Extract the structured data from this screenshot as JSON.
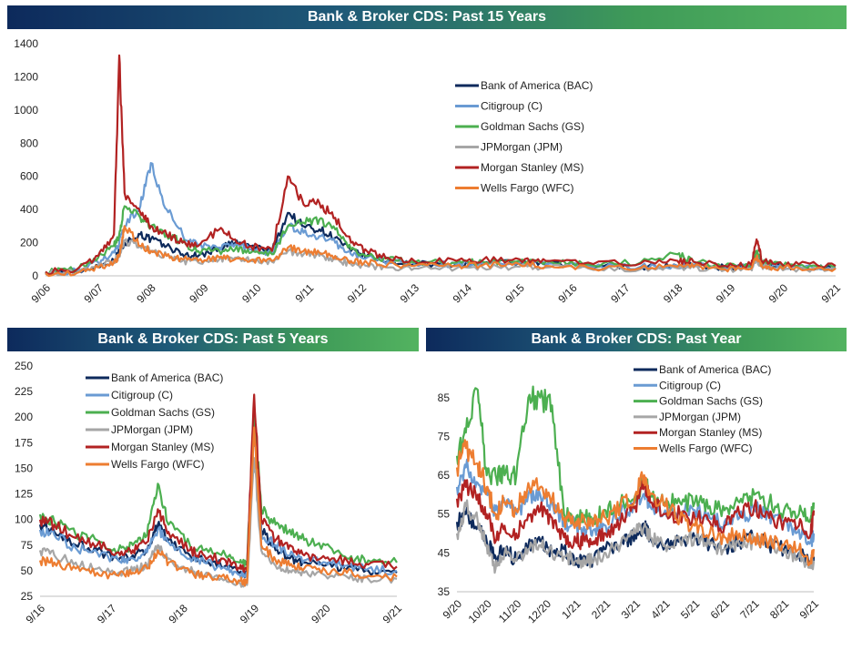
{
  "colors": {
    "BAC": "#0d2a5c",
    "C": "#6a9bd3",
    "GS": "#4caf50",
    "JPM": "#a6a6a6",
    "MS": "#b22222",
    "WFC": "#ed7d31"
  },
  "chart_data": [
    {
      "type": "line",
      "title": "Bank & Broker CDS: Past 15 Years",
      "x_tick_labels": [
        "9/06",
        "9/07",
        "9/08",
        "9/09",
        "9/10",
        "9/11",
        "9/12",
        "9/13",
        "9/14",
        "9/15",
        "9/16",
        "9/17",
        "9/18",
        "9/19",
        "9/20",
        "9/21"
      ],
      "x": [
        2006.7,
        2007.3,
        2007.7,
        2008.0,
        2008.1,
        2008.2,
        2008.5,
        2008.7,
        2009.0,
        2009.3,
        2009.6,
        2010.0,
        2010.3,
        2010.6,
        2011.0,
        2011.3,
        2011.6,
        2011.9,
        2012.2,
        2012.5,
        2012.8,
        2013.2,
        2013.7,
        2014.5,
        2015.0,
        2015.7,
        2016.2,
        2017.0,
        2018.0,
        2018.7,
        2019.0,
        2019.6,
        2020.1,
        2020.2,
        2020.3,
        2020.5,
        2021.0,
        2021.7
      ],
      "yticks": [
        0,
        200,
        400,
        600,
        800,
        1000,
        1200,
        1400
      ],
      "ylim": [
        0,
        1400
      ],
      "legend": "top-center",
      "series": [
        {
          "key": "BAC",
          "name": "Bank of America (BAC)",
          "values": [
            20,
            25,
            60,
            90,
            150,
            200,
            250,
            220,
            180,
            130,
            120,
            170,
            200,
            180,
            150,
            380,
            300,
            280,
            230,
            150,
            120,
            90,
            70,
            70,
            75,
            80,
            70,
            60,
            55,
            60,
            65,
            50,
            55,
            120,
            70,
            60,
            55,
            50
          ]
        },
        {
          "key": "C",
          "name": "Citigroup (C)",
          "values": [
            18,
            30,
            80,
            140,
            200,
            300,
            420,
            680,
            400,
            250,
            180,
            170,
            190,
            160,
            140,
            300,
            260,
            240,
            200,
            130,
            110,
            90,
            70,
            70,
            75,
            80,
            70,
            60,
            55,
            60,
            65,
            50,
            55,
            110,
            70,
            60,
            55,
            50
          ]
        },
        {
          "key": "GS",
          "name": "Goldman Sachs (GS)",
          "values": [
            25,
            40,
            110,
            180,
            250,
            420,
            350,
            300,
            250,
            200,
            150,
            150,
            160,
            140,
            130,
            300,
            320,
            340,
            280,
            160,
            120,
            100,
            80,
            80,
            85,
            90,
            85,
            70,
            80,
            130,
            85,
            60,
            65,
            140,
            90,
            75,
            65,
            58
          ]
        },
        {
          "key": "JPM",
          "name": "JPMorgan (JPM)",
          "values": [
            15,
            20,
            60,
            90,
            120,
            210,
            180,
            150,
            120,
            90,
            80,
            100,
            110,
            90,
            85,
            150,
            130,
            120,
            100,
            70,
            60,
            50,
            45,
            45,
            50,
            55,
            50,
            45,
            40,
            45,
            50,
            35,
            38,
            100,
            55,
            45,
            42,
            40
          ]
        },
        {
          "key": "MS",
          "name": "Morgan Stanley (MS)",
          "values": [
            25,
            40,
            120,
            250,
            1330,
            500,
            380,
            300,
            250,
            200,
            180,
            280,
            220,
            180,
            150,
            600,
            430,
            440,
            350,
            200,
            150,
            110,
            90,
            90,
            95,
            100,
            90,
            80,
            75,
            90,
            85,
            60,
            65,
            220,
            90,
            75,
            70,
            60
          ]
        },
        {
          "key": "WFC",
          "name": "Wells Fargo (WFC)",
          "values": [
            15,
            18,
            50,
            80,
            120,
            300,
            180,
            150,
            120,
            100,
            90,
            110,
            100,
            95,
            90,
            170,
            150,
            140,
            120,
            90,
            80,
            70,
            60,
            60,
            65,
            70,
            60,
            50,
            48,
            55,
            55,
            40,
            45,
            110,
            60,
            50,
            48,
            45
          ]
        }
      ]
    },
    {
      "type": "line",
      "title": "Bank & Broker CDS: Past 5 Years",
      "x_tick_labels": [
        "9/16",
        "9/17",
        "9/18",
        "9/19",
        "9/20",
        "9/21"
      ],
      "x": [
        2016.7,
        2016.9,
        2017.2,
        2017.5,
        2017.8,
        2018.0,
        2018.2,
        2018.35,
        2018.5,
        2018.8,
        2019.0,
        2019.3,
        2019.5,
        2019.6,
        2019.7,
        2019.8,
        2020.0,
        2020.2,
        2020.4,
        2020.7,
        2021.0,
        2021.3,
        2021.7
      ],
      "yticks": [
        25,
        50,
        75,
        100,
        125,
        150,
        175,
        200,
        225,
        250
      ],
      "ylim": [
        25,
        250
      ],
      "legend": "top-left",
      "series": [
        {
          "key": "BAC",
          "name": "Bank of America (BAC)",
          "values": [
            95,
            88,
            75,
            70,
            60,
            65,
            70,
            95,
            80,
            65,
            60,
            55,
            48,
            45,
            200,
            90,
            70,
            62,
            58,
            55,
            52,
            50,
            48
          ]
        },
        {
          "key": "C",
          "name": "Citigroup (C)",
          "values": [
            90,
            85,
            72,
            68,
            60,
            62,
            68,
            90,
            78,
            62,
            58,
            52,
            46,
            44,
            190,
            85,
            75,
            65,
            60,
            58,
            55,
            52,
            50
          ]
        },
        {
          "key": "GS",
          "name": "Goldman Sachs (GS)",
          "values": [
            105,
            98,
            85,
            80,
            70,
            75,
            85,
            135,
            95,
            75,
            70,
            65,
            58,
            55,
            210,
            110,
            95,
            90,
            80,
            75,
            62,
            60,
            58
          ]
        },
        {
          "key": "JPM",
          "name": "JPMorgan (JPM)",
          "values": [
            70,
            65,
            58,
            52,
            48,
            50,
            55,
            75,
            62,
            50,
            45,
            42,
            38,
            36,
            160,
            70,
            55,
            50,
            48,
            45,
            44,
            42,
            42
          ]
        },
        {
          "key": "MS",
          "name": "Morgan Stanley (MS)",
          "values": [
            100,
            95,
            82,
            75,
            68,
            70,
            78,
            110,
            88,
            70,
            65,
            60,
            52,
            50,
            222,
            100,
            80,
            75,
            65,
            62,
            60,
            56,
            54
          ]
        },
        {
          "key": "WFC",
          "name": "Wells Fargo (WFC)",
          "values": [
            60,
            58,
            52,
            48,
            45,
            48,
            52,
            70,
            58,
            48,
            45,
            42,
            40,
            38,
            190,
            75,
            60,
            55,
            52,
            50,
            48,
            45,
            44
          ]
        }
      ]
    },
    {
      "type": "line",
      "title": "Bank & Broker CDS: Past Year",
      "x_tick_labels": [
        "9/20",
        "10/20",
        "11/20",
        "12/20",
        "1/21",
        "2/21",
        "3/21",
        "4/21",
        "5/21",
        "6/21",
        "7/21",
        "8/21",
        "9/21"
      ],
      "x": [
        0,
        0.3,
        0.7,
        1.0,
        1.3,
        1.6,
        2.0,
        2.4,
        2.8,
        3.2,
        3.6,
        4.0,
        4.3,
        4.6,
        5.0,
        5.5,
        6.0,
        6.3,
        6.5,
        7.0,
        7.5,
        8.0,
        8.5,
        9.0,
        9.5,
        10.0,
        10.5,
        11.0,
        11.5,
        11.9,
        12.0
      ],
      "yticks": [
        35,
        45,
        55,
        65,
        75,
        85
      ],
      "ylim": [
        35,
        88
      ],
      "legend": "top-center",
      "series": [
        {
          "key": "BAC",
          "name": "Bank of America (BAC)",
          "values": [
            53,
            55,
            52,
            48,
            44,
            46,
            43,
            47,
            48,
            45,
            46,
            42,
            44,
            43,
            46,
            47,
            50,
            52,
            49,
            47,
            48,
            49,
            47,
            46,
            48,
            49,
            47,
            46,
            45,
            43,
            44
          ]
        },
        {
          "key": "C",
          "name": "Citigroup (C)",
          "values": [
            62,
            67,
            63,
            60,
            56,
            58,
            55,
            60,
            60,
            58,
            53,
            52,
            51,
            51,
            52,
            55,
            58,
            60,
            57,
            56,
            55,
            56,
            54,
            53,
            54,
            56,
            55,
            53,
            51,
            48,
            50
          ]
        },
        {
          "key": "GS",
          "name": "Goldman Sachs (GS)",
          "values": [
            70,
            76,
            87,
            65,
            65,
            65,
            65,
            85,
            85,
            83,
            55,
            54,
            54,
            54,
            56,
            58,
            60,
            64,
            60,
            58,
            58,
            58,
            57,
            56,
            58,
            60,
            58,
            56,
            55,
            54,
            58
          ]
        },
        {
          "key": "JPM",
          "name": "JPMorgan (JPM)",
          "values": [
            50,
            57,
            53,
            47,
            41,
            45,
            43,
            46,
            47,
            45,
            44,
            43,
            43,
            43,
            45,
            47,
            50,
            52,
            49,
            47,
            48,
            49,
            47,
            46,
            47,
            48,
            47,
            45,
            44,
            42,
            43
          ]
        },
        {
          "key": "MS",
          "name": "Morgan Stanley (MS)",
          "values": [
            59,
            62,
            60,
            55,
            48,
            52,
            50,
            55,
            56,
            54,
            49,
            48,
            48,
            48,
            50,
            53,
            57,
            63,
            58,
            55,
            55,
            54,
            53,
            52,
            55,
            57,
            54,
            53,
            52,
            50,
            56
          ]
        },
        {
          "key": "WFC",
          "name": "Wells Fargo (WFC)",
          "values": [
            67,
            72,
            68,
            62,
            55,
            58,
            56,
            63,
            62,
            59,
            54,
            53,
            53,
            53,
            54,
            57,
            60,
            65,
            60,
            57,
            54,
            52,
            50,
            49,
            50,
            49,
            48,
            47,
            46,
            43,
            46
          ]
        }
      ]
    }
  ]
}
